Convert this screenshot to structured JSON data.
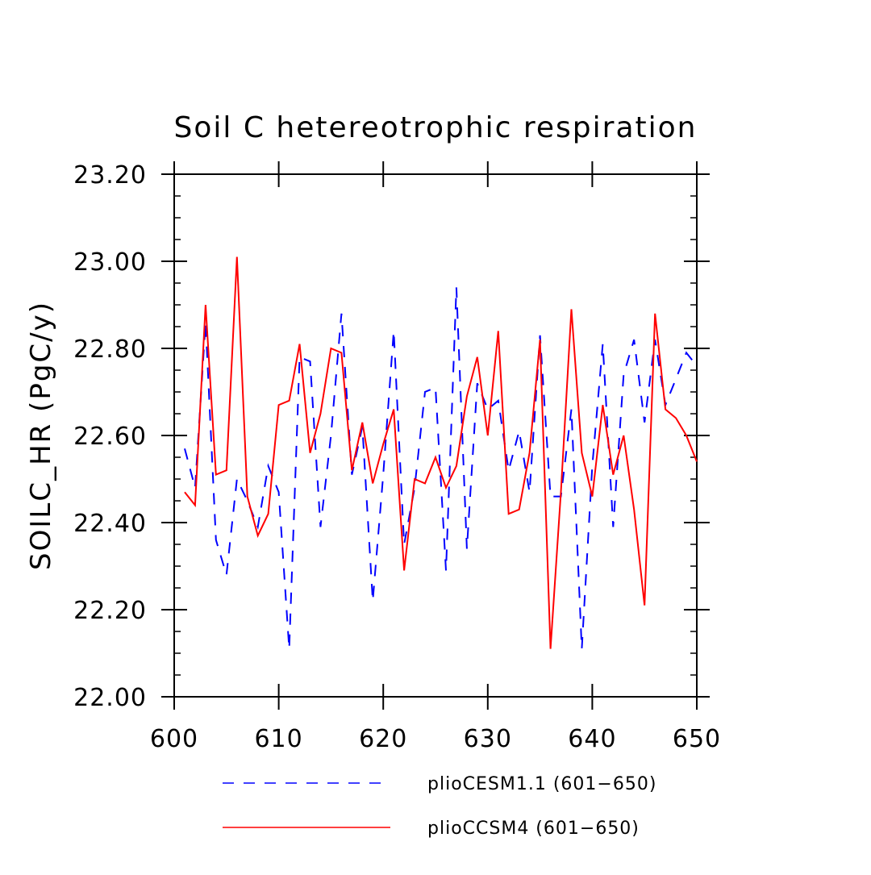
{
  "chart_data": {
    "type": "line",
    "title": "Soil C hetereotrophic respiration",
    "xlabel": "",
    "ylabel": "SOILC_HR  (PgC/y)",
    "xlim": [
      600,
      650
    ],
    "ylim": [
      22.0,
      23.2
    ],
    "x_ticks": [
      600,
      610,
      620,
      630,
      640,
      650
    ],
    "x_tick_labels": [
      "600",
      "610",
      "620",
      "630",
      "640",
      "650"
    ],
    "y_ticks": [
      22.0,
      22.2,
      22.4,
      22.6,
      22.8,
      23.0,
      23.2
    ],
    "y_tick_labels": [
      "22.00",
      "22.20",
      "22.40",
      "22.60",
      "22.80",
      "23.00",
      "23.20"
    ],
    "legend_position": "bottom",
    "series": [
      {
        "name": "plioCESM1.1 (601-650)",
        "style": "dashed",
        "color": "#0000ff",
        "x": [
          601,
          602,
          603,
          604,
          605,
          606,
          607,
          608,
          609,
          610,
          611,
          612,
          613,
          614,
          615,
          616,
          617,
          618,
          619,
          620,
          621,
          622,
          623,
          624,
          625,
          626,
          627,
          628,
          629,
          630,
          631,
          632,
          633,
          634,
          635,
          636,
          637,
          638,
          639,
          640,
          641,
          642,
          643,
          644,
          645,
          646,
          647,
          648,
          649,
          650
        ],
        "values": [
          22.57,
          22.48,
          22.86,
          22.36,
          22.28,
          22.5,
          22.45,
          22.39,
          22.53,
          22.47,
          22.11,
          22.78,
          22.77,
          22.39,
          22.6,
          22.88,
          22.51,
          22.62,
          22.22,
          22.51,
          22.84,
          22.35,
          22.48,
          22.7,
          22.71,
          22.29,
          22.94,
          22.34,
          22.72,
          22.66,
          22.68,
          22.52,
          22.61,
          22.47,
          22.83,
          22.46,
          22.46,
          22.66,
          22.11,
          22.53,
          22.81,
          22.39,
          22.74,
          22.82,
          22.63,
          22.82,
          22.67,
          22.73,
          22.79,
          22.76
        ]
      },
      {
        "name": "plioCCSM4 (601-650)",
        "style": "solid",
        "color": "#ff0000",
        "x": [
          601,
          602,
          603,
          604,
          605,
          606,
          607,
          608,
          609,
          610,
          611,
          612,
          613,
          614,
          615,
          616,
          617,
          618,
          619,
          620,
          621,
          622,
          623,
          624,
          625,
          626,
          627,
          628,
          629,
          630,
          631,
          632,
          633,
          634,
          635,
          636,
          637,
          638,
          639,
          640,
          641,
          642,
          643,
          644,
          645,
          646,
          647,
          648,
          649,
          650
        ],
        "values": [
          22.47,
          22.44,
          22.9,
          22.51,
          22.52,
          23.01,
          22.46,
          22.37,
          22.42,
          22.67,
          22.68,
          22.81,
          22.56,
          22.65,
          22.8,
          22.79,
          22.52,
          22.63,
          22.49,
          22.58,
          22.66,
          22.29,
          22.5,
          22.49,
          22.55,
          22.48,
          22.53,
          22.69,
          22.78,
          22.6,
          22.84,
          22.42,
          22.43,
          22.56,
          22.82,
          22.11,
          22.47,
          22.89,
          22.56,
          22.46,
          22.67,
          22.51,
          22.6,
          22.43,
          22.21,
          22.88,
          22.66,
          22.64,
          22.6,
          22.54
        ]
      }
    ]
  }
}
